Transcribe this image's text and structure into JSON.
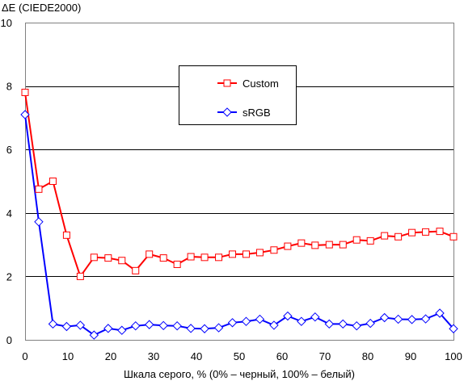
{
  "chart_data": {
    "type": "line",
    "ylabel": "ΔE (CIEDE2000)",
    "xlabel": "Шкала серого, % (0% – черный, 100% – белый)",
    "xlim": [
      0,
      100
    ],
    "ylim": [
      0,
      10
    ],
    "x_ticks": [
      0,
      10,
      20,
      30,
      40,
      50,
      60,
      70,
      80,
      90,
      100
    ],
    "y_ticks": [
      0,
      2,
      4,
      6,
      8,
      10
    ],
    "grid": "horizontal",
    "legend_position": "center-top, boxed",
    "x": [
      0,
      3.2,
      6.5,
      9.7,
      12.9,
      16.1,
      19.4,
      22.6,
      25.8,
      29.0,
      32.3,
      35.5,
      38.7,
      41.9,
      45.2,
      48.4,
      51.6,
      54.8,
      58.1,
      61.3,
      64.5,
      67.7,
      71.0,
      74.2,
      77.4,
      80.6,
      83.9,
      87.1,
      90.3,
      93.5,
      96.8,
      100
    ],
    "series": [
      {
        "name": "Custom",
        "color": "#ff0000",
        "marker": "square",
        "values": [
          7.8,
          4.75,
          5.0,
          3.3,
          2.0,
          2.6,
          2.58,
          2.5,
          2.18,
          2.7,
          2.58,
          2.38,
          2.62,
          2.6,
          2.6,
          2.7,
          2.7,
          2.75,
          2.83,
          2.95,
          3.05,
          2.98,
          3.0,
          3.0,
          3.15,
          3.12,
          3.28,
          3.25,
          3.38,
          3.4,
          3.42,
          3.25
        ]
      },
      {
        "name": "sRGB",
        "color": "#0000ff",
        "marker": "diamond",
        "values": [
          7.1,
          3.72,
          0.5,
          0.42,
          0.46,
          0.15,
          0.36,
          0.3,
          0.44,
          0.48,
          0.45,
          0.44,
          0.36,
          0.35,
          0.38,
          0.54,
          0.58,
          0.65,
          0.46,
          0.75,
          0.58,
          0.72,
          0.5,
          0.5,
          0.44,
          0.52,
          0.7,
          0.65,
          0.64,
          0.66,
          0.84,
          0.35
        ]
      }
    ]
  }
}
